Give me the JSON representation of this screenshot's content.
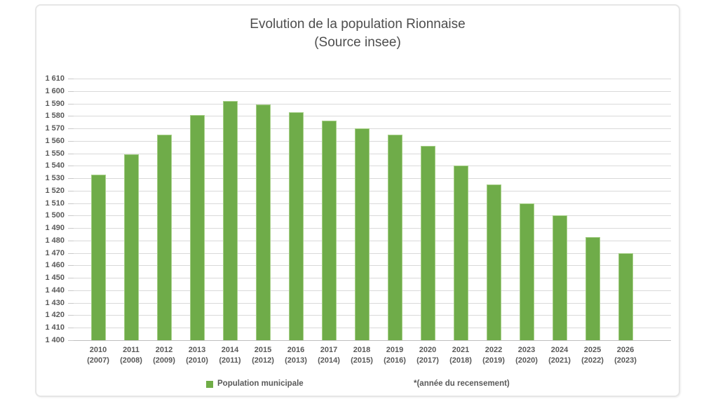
{
  "chart": {
    "title_line1": "Evolution de la population Rionnaise",
    "title_line2": "(Source insee)",
    "legend_label": "Population municipale",
    "footnote": "*(année du recensement)",
    "colors": {
      "bar": "#6fac49",
      "bar_edge": "#a6cf88",
      "legend_swatch": "#70ad47",
      "gridline": "#d9d9d9",
      "axis": "#bfbfbf",
      "text": "#595959"
    }
  },
  "chart_data": {
    "type": "bar",
    "title": "Evolution de la population Rionnaise (Source insee)",
    "series_name": "Population municipale",
    "categories": [
      {
        "year": "2010",
        "census": "(2007)"
      },
      {
        "year": "2011",
        "census": "(2008)"
      },
      {
        "year": "2012",
        "census": "(2009)"
      },
      {
        "year": "2013",
        "census": "(2010)"
      },
      {
        "year": "2014",
        "census": "(2011)"
      },
      {
        "year": "2015",
        "census": "(2012)"
      },
      {
        "year": "2016",
        "census": "(2013)"
      },
      {
        "year": "2017",
        "census": "(2014)"
      },
      {
        "year": "2018",
        "census": "(2015)"
      },
      {
        "year": "2019",
        "census": "(2016)"
      },
      {
        "year": "2020",
        "census": "(2017)"
      },
      {
        "year": "2021",
        "census": "(2018)"
      },
      {
        "year": "2022",
        "census": "(2019)"
      },
      {
        "year": "2023",
        "census": "(2020)"
      },
      {
        "year": "2024",
        "census": "(2021)"
      },
      {
        "year": "2025",
        "census": "(2022)"
      },
      {
        "year": "2026",
        "census": "(2023)"
      }
    ],
    "values": [
      1533,
      1549,
      1565,
      1581,
      1592,
      1589,
      1583,
      1576,
      1570,
      1565,
      1556,
      1540,
      1525,
      1510,
      1500,
      1483,
      1470
    ],
    "ylim": [
      1400,
      1610
    ],
    "ytick_step": 10,
    "grid": true,
    "legend_position": "bottom",
    "xlabel": "",
    "ylabel": ""
  }
}
